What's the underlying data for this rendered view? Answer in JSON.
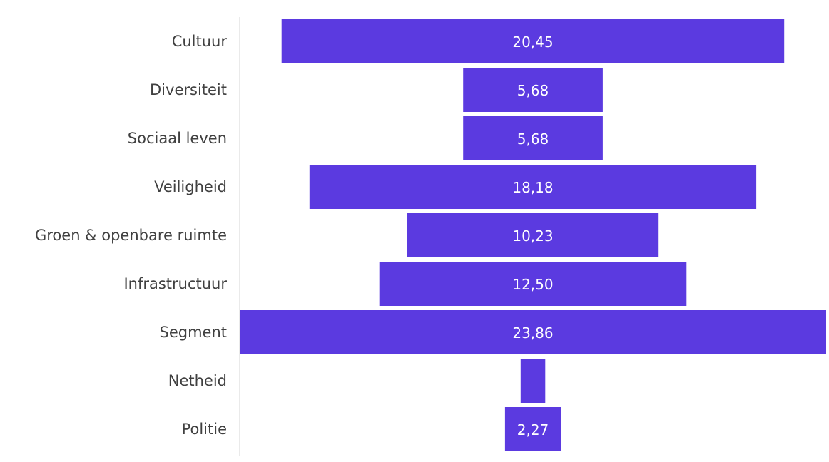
{
  "chart_data": {
    "type": "bar",
    "orientation": "horizontal-funnel",
    "categories": [
      "Cultuur",
      "Diversiteit",
      "Sociaal leven",
      "Veiligheid",
      "Groen & openbare ruimte",
      "Infrastructuur",
      "Segment",
      "Netheid",
      "Politie"
    ],
    "values": [
      20.45,
      5.68,
      5.68,
      18.18,
      10.23,
      12.5,
      23.86,
      1.0,
      2.27
    ],
    "value_labels": [
      "20,45",
      "5,68",
      "5,68",
      "18,18",
      "10,23",
      "12,50",
      "23,86",
      "",
      "2,27"
    ],
    "bar_color": "#5b3ae0",
    "label_color": "#ffffff",
    "category_color": "#404040",
    "xlim": [
      0,
      23.86
    ]
  }
}
